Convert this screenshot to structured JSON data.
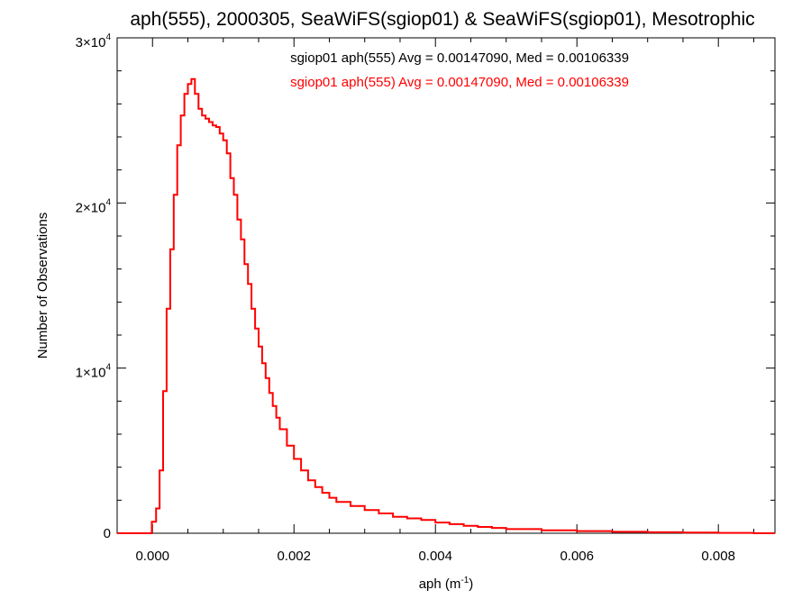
{
  "chart_data": {
    "type": "histogram-step",
    "title": "aph(555), 2000305, SeaWiFS(sgiop01) & SeaWiFS(sgiop01), Mesotrophic",
    "xlabel": "aph (m⁻¹)",
    "ylabel": "Number of Observations",
    "xlim": [
      -0.0005,
      0.0088
    ],
    "ylim": [
      0,
      30000
    ],
    "x_ticks": [
      {
        "value": 0.0,
        "label": "0.000"
      },
      {
        "value": 0.002,
        "label": "0.002"
      },
      {
        "value": 0.004,
        "label": "0.004"
      },
      {
        "value": 0.006,
        "label": "0.006"
      },
      {
        "value": 0.008,
        "label": "0.008"
      }
    ],
    "y_ticks": [
      {
        "value": 0,
        "label": "0",
        "exp": ""
      },
      {
        "value": 10000,
        "label": "1×10",
        "exp": "4"
      },
      {
        "value": 20000,
        "label": "2×10",
        "exp": "4"
      },
      {
        "value": 30000,
        "label": "3×10",
        "exp": "4"
      }
    ],
    "legend": [
      {
        "text": "sgiop01 aph(555) Avg = 0.00147090, Med = 0.00106339",
        "color": "#000000"
      },
      {
        "text": "sgiop01 aph(555) Avg = 0.00147090, Med = 0.00106339",
        "color": "#ff0000"
      }
    ],
    "series": [
      {
        "color": "#ff0000",
        "x": [
          -0.0005,
          -1e-05,
          5e-05,
          0.0001,
          0.00015,
          0.0002,
          0.00025,
          0.0003,
          0.00035,
          0.0004,
          0.00045,
          0.0005,
          0.00055,
          0.0006,
          0.00065,
          0.0007,
          0.00075,
          0.0008,
          0.00085,
          0.0009,
          0.00095,
          0.001,
          0.00105,
          0.0011,
          0.00115,
          0.0012,
          0.00125,
          0.0013,
          0.00135,
          0.0014,
          0.00145,
          0.0015,
          0.00155,
          0.0016,
          0.00165,
          0.0017,
          0.00175,
          0.0018,
          0.0019,
          0.002,
          0.0021,
          0.0022,
          0.0023,
          0.0024,
          0.0025,
          0.0026,
          0.0028,
          0.003,
          0.0032,
          0.0034,
          0.0036,
          0.0038,
          0.004,
          0.0042,
          0.0044,
          0.0046,
          0.0048,
          0.005,
          0.0055,
          0.006,
          0.0065,
          0.007,
          0.0075,
          0.008,
          0.0085
        ],
        "y": [
          0,
          700,
          1500,
          3800,
          8600,
          13600,
          17200,
          20500,
          23500,
          25300,
          26600,
          27200,
          27500,
          26600,
          25700,
          25300,
          25100,
          24900,
          24700,
          24600,
          24200,
          23800,
          23000,
          21500,
          20500,
          19000,
          17800,
          16300,
          15100,
          13600,
          12400,
          11300,
          10300,
          9400,
          8500,
          7700,
          7000,
          6300,
          5300,
          4500,
          3800,
          3200,
          2800,
          2450,
          2150,
          1900,
          1650,
          1400,
          1200,
          1000,
          900,
          800,
          650,
          550,
          450,
          380,
          320,
          250,
          180,
          130,
          90,
          60,
          40,
          20,
          0
        ]
      }
    ]
  }
}
